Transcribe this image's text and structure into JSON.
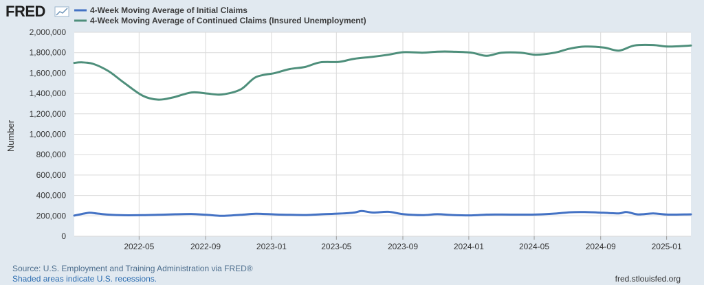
{
  "logo": {
    "text": "FRED"
  },
  "footer": {
    "source": "Source: U.S. Employment and Training Administration via FRED®",
    "shaded_note": "Shaded areas indicate U.S. recessions.",
    "site": "fred.stlouisfed.org"
  },
  "colors": {
    "initial_claims": "#4472c4",
    "continued_claims": "#4e8f7b",
    "plot_bg": "#ffffff",
    "grid": "#d9d9d9",
    "page_bg": "#e1e9f0"
  },
  "chart_data": {
    "type": "line",
    "ylabel": "Number",
    "xlabel": "",
    "ylim": [
      0,
      2000000
    ],
    "yticks": [
      0,
      200000,
      400000,
      600000,
      800000,
      1000000,
      1200000,
      1400000,
      1600000,
      1800000,
      2000000
    ],
    "ytick_labels": [
      "0",
      "200,000",
      "400,000",
      "600,000",
      "800,000",
      "1,000,000",
      "1,200,000",
      "1,400,000",
      "1,600,000",
      "1,800,000",
      "2,000,000"
    ],
    "xlim": [
      "2022-01-01",
      "2025-02-15"
    ],
    "xticks": [
      "2022-05-01",
      "2022-09-01",
      "2023-01-01",
      "2023-05-01",
      "2023-09-01",
      "2024-01-01",
      "2024-05-01",
      "2024-09-01",
      "2025-01-01"
    ],
    "xtick_labels": [
      "2022-05",
      "2022-09",
      "2023-01",
      "2023-05",
      "2023-09",
      "2024-01",
      "2024-05",
      "2024-09",
      "2025-01"
    ],
    "grid": true,
    "legend": "top-left",
    "series": [
      {
        "name": "4-Week Moving Average of Initial Claims",
        "x": [
          "2022-01-01",
          "2022-01-15",
          "2022-01-29",
          "2022-02-12",
          "2022-03-05",
          "2022-04-02",
          "2022-05-07",
          "2022-06-04",
          "2022-07-02",
          "2022-08-06",
          "2022-09-03",
          "2022-10-01",
          "2022-11-05",
          "2022-12-03",
          "2023-01-07",
          "2023-02-04",
          "2023-03-04",
          "2023-04-01",
          "2023-05-06",
          "2023-06-03",
          "2023-06-17",
          "2023-07-08",
          "2023-08-05",
          "2023-09-02",
          "2023-10-07",
          "2023-11-04",
          "2023-12-02",
          "2024-01-06",
          "2024-02-03",
          "2024-03-02",
          "2024-04-06",
          "2024-05-04",
          "2024-06-08",
          "2024-07-06",
          "2024-08-03",
          "2024-09-07",
          "2024-10-05",
          "2024-10-19",
          "2024-11-09",
          "2024-12-07",
          "2025-01-04",
          "2025-02-15"
        ],
        "values": [
          203000,
          218000,
          230000,
          223000,
          212000,
          206000,
          207000,
          210000,
          215000,
          218000,
          210000,
          200000,
          210000,
          220000,
          214000,
          210000,
          208000,
          215000,
          222000,
          232000,
          248000,
          232000,
          240000,
          216000,
          207000,
          216000,
          208000,
          205000,
          212000,
          213000,
          212000,
          213000,
          222000,
          235000,
          237000,
          230000,
          224000,
          238000,
          214000,
          224000,
          212000,
          215000
        ]
      },
      {
        "name": "4-Week Moving Average of Continued Claims (Insured Unemployment)",
        "x": [
          "2022-01-01",
          "2022-01-15",
          "2022-02-05",
          "2022-03-05",
          "2022-04-02",
          "2022-05-07",
          "2022-06-04",
          "2022-07-02",
          "2022-08-06",
          "2022-09-03",
          "2022-10-01",
          "2022-11-05",
          "2022-12-03",
          "2023-01-07",
          "2023-02-04",
          "2023-03-04",
          "2023-04-01",
          "2023-05-06",
          "2023-06-03",
          "2023-07-08",
          "2023-08-05",
          "2023-09-02",
          "2023-10-07",
          "2023-11-04",
          "2023-12-02",
          "2024-01-06",
          "2024-02-03",
          "2024-03-02",
          "2024-04-06",
          "2024-05-04",
          "2024-06-08",
          "2024-07-06",
          "2024-08-03",
          "2024-09-07",
          "2024-10-05",
          "2024-11-02",
          "2024-12-07",
          "2025-01-04",
          "2025-02-15"
        ],
        "values": [
          1700000,
          1705000,
          1690000,
          1620000,
          1510000,
          1380000,
          1340000,
          1360000,
          1410000,
          1400000,
          1390000,
          1440000,
          1560000,
          1600000,
          1640000,
          1660000,
          1705000,
          1710000,
          1740000,
          1760000,
          1780000,
          1805000,
          1800000,
          1810000,
          1810000,
          1800000,
          1770000,
          1800000,
          1800000,
          1780000,
          1800000,
          1840000,
          1860000,
          1850000,
          1820000,
          1870000,
          1875000,
          1860000,
          1870000
        ]
      }
    ]
  }
}
